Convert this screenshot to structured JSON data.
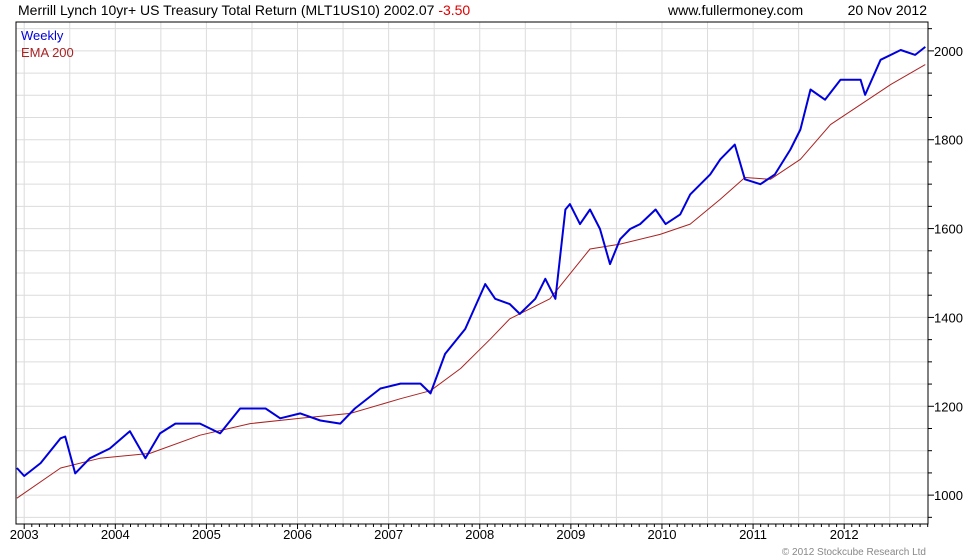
{
  "header": {
    "title": "Merrill Lynch 10yr+ US Treasury Total Return (MLT1US10) 2002.07",
    "change": "-3.50",
    "site": "www.fullermoney.com",
    "date": "20 Nov 2012"
  },
  "footer": {
    "copyright": "© 2012 Stockcube Research Ltd"
  },
  "colors": {
    "weekly": "#0000dd",
    "ema": "#aa2222",
    "change": "#dd0000",
    "grid": "#dcdcdc"
  },
  "chart_data": {
    "type": "line",
    "title": "Merrill Lynch 10yr+ US Treasury Total Return (MLT1US10)",
    "xlabel": "",
    "ylabel": "",
    "xlim": [
      2002.91,
      2012.92
    ],
    "ylim": [
      935,
      2065
    ],
    "grid": true,
    "legend": "top-left",
    "x_ticks": [
      "2003",
      "2004",
      "2005",
      "2006",
      "2007",
      "2008",
      "2009",
      "2010",
      "2011",
      "2012"
    ],
    "y_ticks": [
      1000,
      1200,
      1400,
      1600,
      1800,
      2000
    ],
    "series": [
      {
        "name": "Weekly",
        "points": [
          [
            2002.92,
            1061
          ],
          [
            2003.0,
            1043
          ],
          [
            2003.18,
            1072
          ],
          [
            2003.4,
            1128
          ],
          [
            2003.45,
            1132
          ],
          [
            2003.56,
            1049
          ],
          [
            2003.72,
            1083
          ],
          [
            2003.94,
            1105
          ],
          [
            2004.16,
            1144
          ],
          [
            2004.33,
            1083
          ],
          [
            2004.49,
            1139
          ],
          [
            2004.66,
            1161
          ],
          [
            2004.93,
            1161
          ],
          [
            2005.15,
            1139
          ],
          [
            2005.37,
            1195
          ],
          [
            2005.65,
            1195
          ],
          [
            2005.81,
            1173
          ],
          [
            2006.03,
            1184
          ],
          [
            2006.25,
            1168
          ],
          [
            2006.47,
            1161
          ],
          [
            2006.63,
            1195
          ],
          [
            2006.91,
            1240
          ],
          [
            2007.13,
            1251
          ],
          [
            2007.35,
            1251
          ],
          [
            2007.46,
            1229
          ],
          [
            2007.62,
            1318
          ],
          [
            2007.84,
            1374
          ],
          [
            2008.06,
            1475
          ],
          [
            2008.17,
            1442
          ],
          [
            2008.33,
            1430
          ],
          [
            2008.44,
            1408
          ],
          [
            2008.61,
            1442
          ],
          [
            2008.72,
            1487
          ],
          [
            2008.83,
            1442
          ],
          [
            2008.94,
            1643
          ],
          [
            2008.99,
            1655
          ],
          [
            2009.1,
            1610
          ],
          [
            2009.21,
            1643
          ],
          [
            2009.32,
            1599
          ],
          [
            2009.43,
            1520
          ],
          [
            2009.54,
            1576
          ],
          [
            2009.65,
            1599
          ],
          [
            2009.76,
            1610
          ],
          [
            2009.93,
            1643
          ],
          [
            2010.04,
            1610
          ],
          [
            2010.2,
            1632
          ],
          [
            2010.31,
            1677
          ],
          [
            2010.53,
            1722
          ],
          [
            2010.64,
            1756
          ],
          [
            2010.8,
            1789
          ],
          [
            2010.91,
            1711
          ],
          [
            2011.08,
            1700
          ],
          [
            2011.24,
            1722
          ],
          [
            2011.41,
            1778
          ],
          [
            2011.52,
            1823
          ],
          [
            2011.63,
            1913
          ],
          [
            2011.79,
            1890
          ],
          [
            2011.96,
            1935
          ],
          [
            2012.18,
            1935
          ],
          [
            2012.23,
            1901
          ],
          [
            2012.4,
            1980
          ],
          [
            2012.62,
            2002
          ],
          [
            2012.78,
            1991
          ],
          [
            2012.89,
            2009
          ]
        ]
      },
      {
        "name": "EMA 200",
        "points": [
          [
            2002.92,
            993
          ],
          [
            2003.4,
            1061
          ],
          [
            2003.83,
            1083
          ],
          [
            2004.38,
            1094
          ],
          [
            2004.93,
            1135
          ],
          [
            2005.48,
            1161
          ],
          [
            2006.03,
            1173
          ],
          [
            2006.58,
            1184
          ],
          [
            2007.13,
            1217
          ],
          [
            2007.46,
            1235
          ],
          [
            2007.79,
            1285
          ],
          [
            2008.12,
            1352
          ],
          [
            2008.33,
            1397
          ],
          [
            2008.77,
            1442
          ],
          [
            2008.99,
            1498
          ],
          [
            2009.21,
            1554
          ],
          [
            2009.54,
            1565
          ],
          [
            2009.98,
            1587
          ],
          [
            2010.31,
            1610
          ],
          [
            2010.64,
            1666
          ],
          [
            2010.91,
            1715
          ],
          [
            2011.19,
            1711
          ],
          [
            2011.52,
            1756
          ],
          [
            2011.85,
            1834
          ],
          [
            2012.18,
            1879
          ],
          [
            2012.51,
            1924
          ],
          [
            2012.89,
            1969
          ]
        ]
      }
    ]
  }
}
